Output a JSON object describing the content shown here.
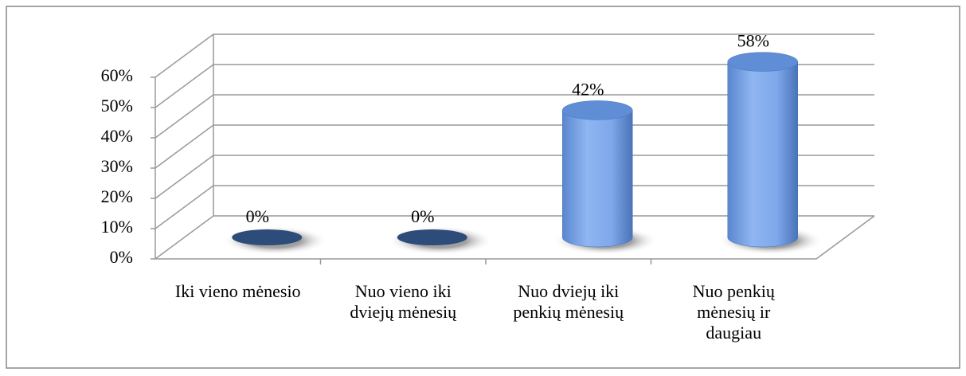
{
  "chart_data": {
    "type": "bar3d",
    "categories": [
      "Iki vieno mėnesio",
      "Nuo vieno iki\ndviejų mėnesių",
      "Nuo dviejų iki\npenkių mėnesių",
      "Nuo penkių\nmėnesių ir\ndaugiau"
    ],
    "values": [
      0,
      0,
      42,
      58
    ],
    "value_labels": [
      "0%",
      "0%",
      "42%",
      "58%"
    ],
    "color": "#7ea8ea",
    "ylim": [
      0,
      60
    ],
    "yticks": [
      {
        "value": 0,
        "label": "0%"
      },
      {
        "value": 10,
        "label": "10%"
      },
      {
        "value": 20,
        "label": "20%"
      },
      {
        "value": 30,
        "label": "30%"
      },
      {
        "value": 40,
        "label": "40%"
      },
      {
        "value": 50,
        "label": "50%"
      },
      {
        "value": 60,
        "label": "60%"
      }
    ],
    "grid": true
  }
}
